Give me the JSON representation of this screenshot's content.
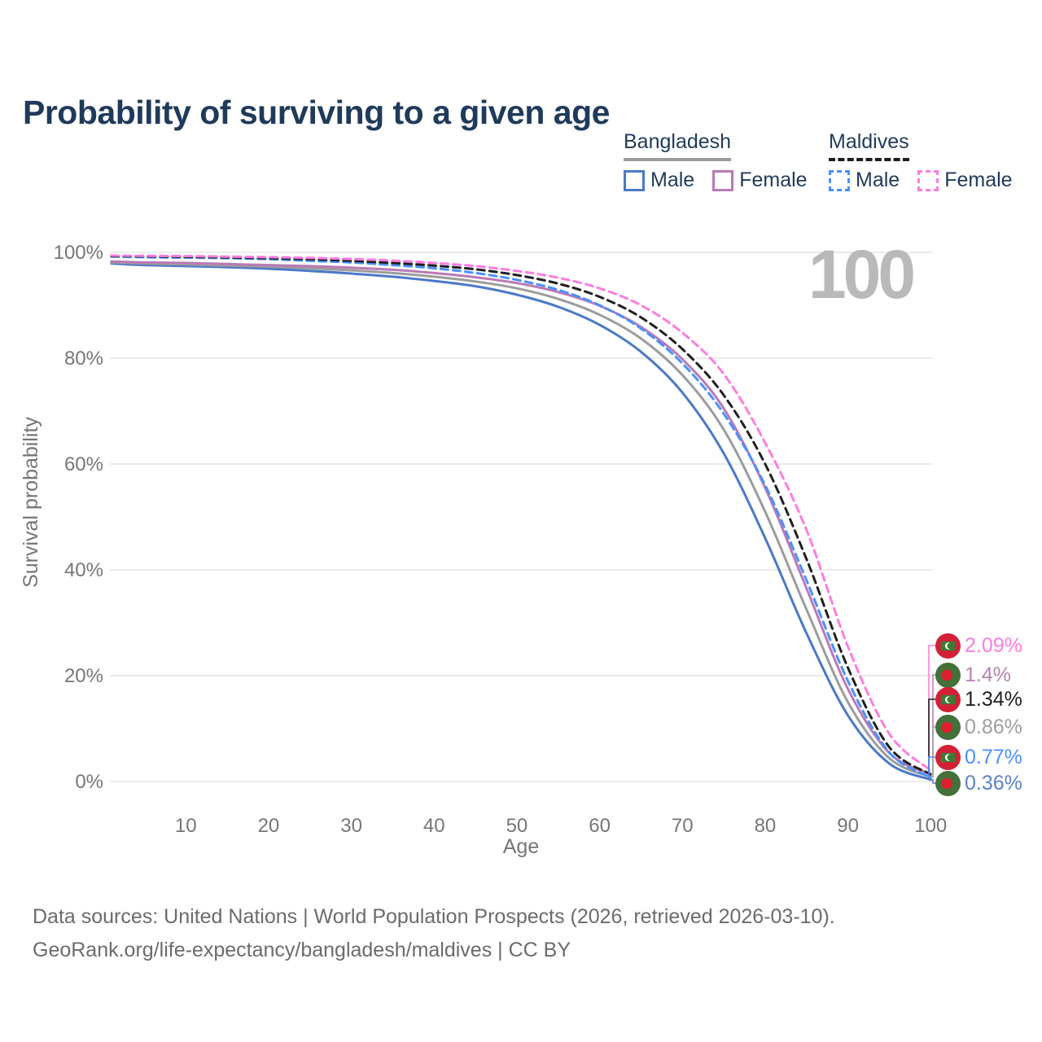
{
  "title": "Probability of surviving to a given age",
  "watermark": {
    "text": "100"
  },
  "legend": {
    "groups": [
      {
        "label": "Bangladesh",
        "line_style": "solid",
        "line_color": "#9c9c9c",
        "items": [
          {
            "label": "Male",
            "color": "#4c78c8"
          },
          {
            "label": "Female",
            "color": "#b97ab5"
          }
        ]
      },
      {
        "label": "Maldives",
        "line_style": "dashed",
        "line_color": "#1c1c1c",
        "items": [
          {
            "label": "Male",
            "color": "#4a90fe"
          },
          {
            "label": "Female",
            "color": "#ff7ce0"
          }
        ]
      }
    ]
  },
  "chart_data": {
    "type": "line",
    "title": "Probability of surviving to a given age",
    "xlabel": "Age",
    "ylabel": "Survival probability",
    "xlim": [
      1,
      100
    ],
    "ylim": [
      0,
      100
    ],
    "grid": "horizontal-only",
    "x_ticks": [
      10,
      20,
      30,
      40,
      50,
      60,
      70,
      80,
      90,
      100
    ],
    "y_ticks": [
      0,
      20,
      40,
      60,
      80,
      100
    ],
    "y_tick_labels": [
      "0%",
      "20%",
      "40%",
      "60%",
      "80%",
      "100%"
    ],
    "x": [
      1,
      5,
      10,
      15,
      20,
      25,
      30,
      35,
      40,
      45,
      50,
      55,
      60,
      65,
      70,
      75,
      80,
      85,
      90,
      95,
      100
    ],
    "series": [
      {
        "id": "bd_male",
        "name": "Bangladesh Male",
        "country": "Bangladesh",
        "sex": "Male",
        "color": "#4c78c8",
        "dash": "solid",
        "values": [
          97.9,
          97.6,
          97.4,
          97.2,
          96.9,
          96.5,
          96.0,
          95.4,
          94.6,
          93.6,
          92.0,
          89.7,
          86.3,
          81.2,
          73.5,
          62.0,
          46.0,
          28.0,
          12.5,
          3.4,
          0.36
        ]
      },
      {
        "id": "bd_total",
        "name": "Bangladesh (both sexes)",
        "country": "Bangladesh",
        "sex": "Both",
        "color": "#9c9c9c",
        "dash": "solid",
        "values": [
          98.1,
          97.9,
          97.7,
          97.5,
          97.3,
          97.0,
          96.6,
          96.1,
          95.4,
          94.5,
          93.2,
          91.2,
          88.2,
          83.7,
          76.8,
          66.5,
          51.0,
          32.5,
          15.0,
          4.4,
          0.86
        ]
      },
      {
        "id": "bd_female",
        "name": "Bangladesh Female",
        "country": "Bangladesh",
        "sex": "Female",
        "color": "#b97ab5",
        "dash": "solid",
        "values": [
          98.3,
          98.1,
          98.0,
          97.8,
          97.6,
          97.4,
          97.1,
          96.7,
          96.1,
          95.3,
          94.2,
          92.5,
          89.9,
          85.9,
          79.8,
          70.5,
          55.5,
          36.5,
          17.5,
          5.4,
          1.4
        ]
      },
      {
        "id": "mv_male",
        "name": "Maldives Male",
        "country": "Maldives",
        "sex": "Male",
        "color": "#4a90fe",
        "dash": "dashed",
        "values": [
          99.2,
          99.1,
          99.0,
          98.9,
          98.7,
          98.4,
          98.1,
          97.6,
          97.0,
          96.1,
          94.8,
          92.9,
          90.0,
          85.6,
          79.0,
          69.5,
          56.0,
          38.0,
          19.0,
          5.5,
          0.77
        ]
      },
      {
        "id": "mv_total",
        "name": "Maldives (both sexes)",
        "country": "Maldives",
        "sex": "Both",
        "color": "#1f1f1f",
        "dash": "dashed",
        "values": [
          99.3,
          99.25,
          99.15,
          99.05,
          98.9,
          98.7,
          98.4,
          98.0,
          97.5,
          96.8,
          95.7,
          94.1,
          91.6,
          87.7,
          81.7,
          73.0,
          60.0,
          42.0,
          21.5,
          6.5,
          1.34
        ]
      },
      {
        "id": "mv_female",
        "name": "Maldives Female",
        "country": "Maldives",
        "sex": "Female",
        "color": "#ff7ce0",
        "dash": "dashed",
        "values": [
          99.4,
          99.35,
          99.3,
          99.2,
          99.1,
          98.95,
          98.75,
          98.45,
          98.0,
          97.4,
          96.5,
          95.2,
          93.2,
          90.0,
          84.8,
          77.0,
          64.0,
          47.5,
          25.5,
          9.0,
          2.09
        ]
      }
    ]
  },
  "end_labels": [
    {
      "series": "mv_female",
      "value": "2.09%",
      "color": "#ff7ce0",
      "flag": "maldives-flag-icon"
    },
    {
      "series": "bd_female",
      "value": "1.4%",
      "color": "#b783b1",
      "flag": "bangladesh-flag-icon"
    },
    {
      "series": "mv_total",
      "value": "1.34%",
      "color": "#1f1f1f",
      "flag": "maldives-flag-icon"
    },
    {
      "series": "bd_total",
      "value": "0.86%",
      "color": "#9e9e9e",
      "flag": "bangladesh-flag-icon"
    },
    {
      "series": "mv_male",
      "value": "0.77%",
      "color": "#4a90fe",
      "flag": "maldives-flag-icon"
    },
    {
      "series": "bd_male",
      "value": "0.36%",
      "color": "#5b82cc",
      "flag": "bangladesh-flag-icon"
    }
  ],
  "footer": {
    "line1": "Data sources: United Nations | World Population Prospects (2026, retrieved 2026-03-10).",
    "line2": "GeoRank.org/life-expectancy/bangladesh/maldives | CC BY"
  }
}
